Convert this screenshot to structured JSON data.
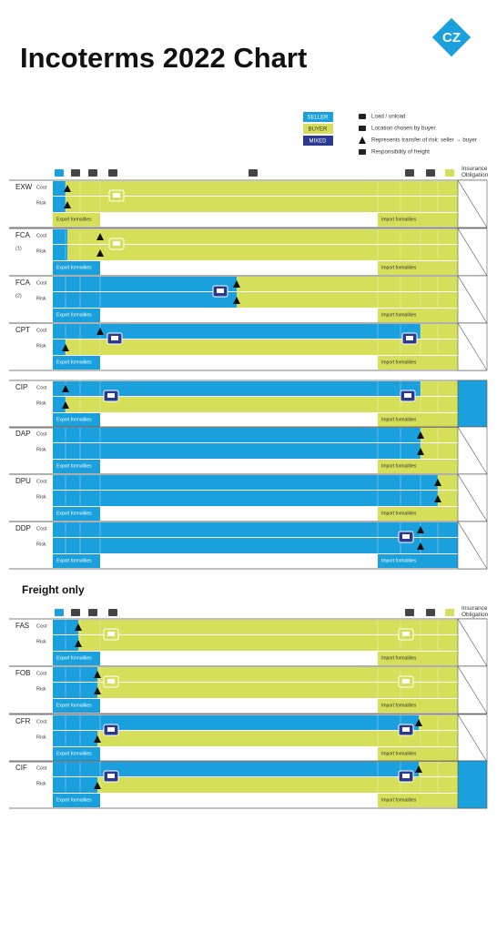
{
  "header": {
    "title": "Incoterms 2022 Chart",
    "logo": "CZ"
  },
  "legend": {
    "colors": [
      "SELLER",
      "BUYER",
      "MIXED"
    ],
    "icons": [
      "Load / unload",
      "Location chosen by buyer",
      "Represents transfer of risk: seller → buyer",
      "Responsibility of freight"
    ]
  },
  "labels": {
    "cost": "Cost",
    "risk": "Risk",
    "export": "Export formalities",
    "import": "Import formalities"
  },
  "sections": [
    {
      "insurance_label": "Insurance Obligation",
      "rows": [
        {
          "term": "EXW"
        },
        {
          "term": "FCA",
          "note": "(1)"
        },
        {
          "term": "FCA",
          "note": "(2)"
        },
        {
          "term": "CPT"
        },
        {
          "term": "CIP"
        },
        {
          "term": "DAP"
        },
        {
          "term": "DPU"
        },
        {
          "term": "DDP"
        }
      ]
    },
    {
      "heading": "Freight only",
      "insurance_label": "Insurance Obligation",
      "rows": [
        {
          "term": "FAS"
        },
        {
          "term": "FOB"
        },
        {
          "term": "CFR"
        },
        {
          "term": "CIF"
        }
      ]
    }
  ]
}
